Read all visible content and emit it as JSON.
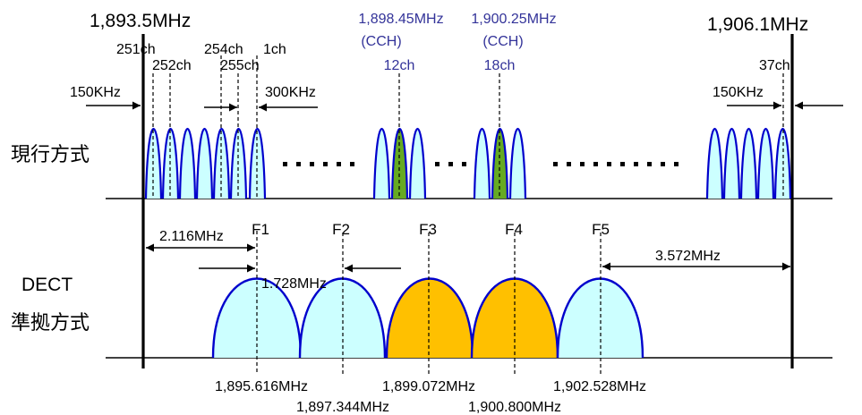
{
  "band": {
    "left_edge": "1,893.5MHz",
    "right_edge": "1,906.1MHz"
  },
  "current_system": {
    "row_label": "現行方式",
    "channel_labels": [
      "251ch",
      "252ch",
      "254ch",
      "255ch",
      "1ch",
      "37ch"
    ],
    "cch_left": {
      "freq": "1,898.45MHz",
      "type": "(CCH)",
      "channel": "12ch"
    },
    "cch_right": {
      "freq": "1,900.25MHz",
      "type": "(CCH)",
      "channel": "18ch"
    },
    "guard_left": "150KHz",
    "guard_right": "150KHz",
    "spacing": "300KHz",
    "colors": {
      "channel_fill": "#ccffff",
      "cch_fill": "#66aa22",
      "outline": "#0000cc"
    }
  },
  "dect_system": {
    "row_label_1": "DECT",
    "row_label_2": "準拠方式",
    "carriers": [
      "F1",
      "F2",
      "F3",
      "F4",
      "F5"
    ],
    "left_offset": "2.116MHz",
    "carrier_spacing": "1.728MHz",
    "right_offset": "3.572MHz",
    "center_freqs": [
      "1,895.616MHz",
      "1,897.344MHz",
      "1,899.072MHz",
      "1,900.800MHz",
      "1,902.528MHz"
    ],
    "carrier_colors": [
      "#ccffff",
      "#ccffff",
      "#ffc000",
      "#ffc000",
      "#ccffff"
    ]
  }
}
